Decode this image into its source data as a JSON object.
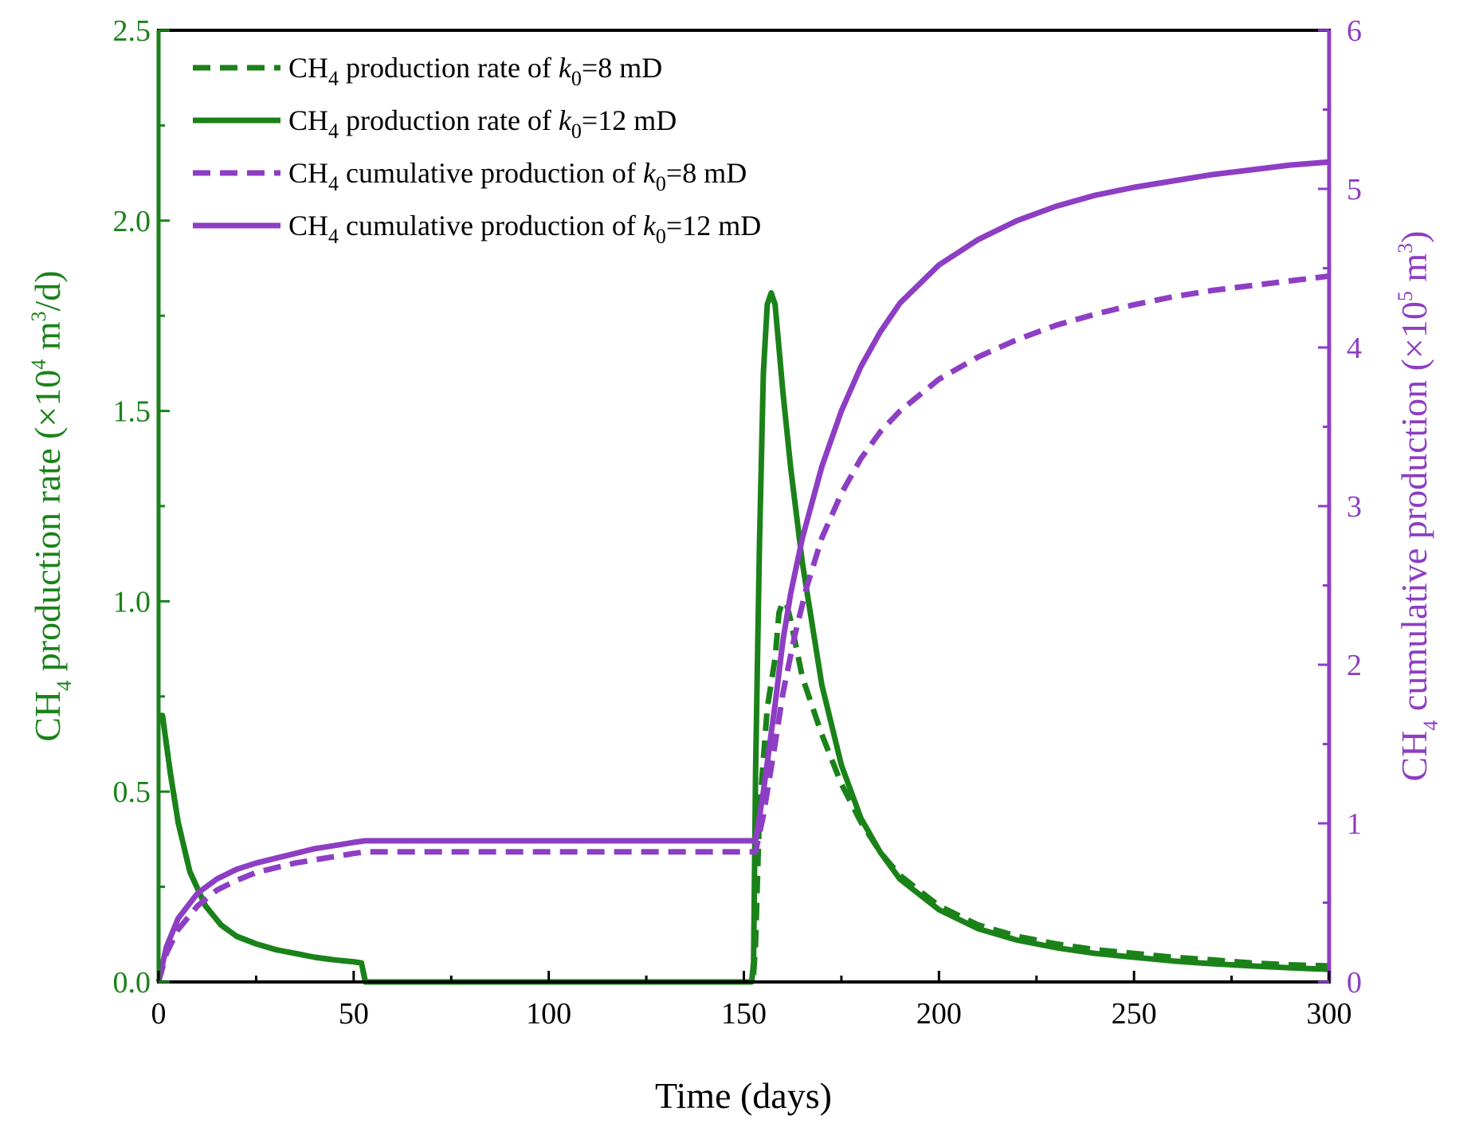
{
  "colors": {
    "rate": "#1a8219",
    "cumulative": "#8d3ec4",
    "frame": "#000000"
  },
  "chart_data": {
    "type": "line",
    "title": "",
    "xlabel": "Time (days)",
    "x_range": [
      0,
      300
    ],
    "x_ticks": [
      0,
      50,
      100,
      150,
      200,
      250,
      300
    ],
    "x_tick_labels": [
      "0",
      "50",
      "100",
      "150",
      "200",
      "250",
      "300"
    ],
    "y_left": {
      "label_main": "CH",
      "label_sub": "4",
      "label_mid": " production rate (×10",
      "label_sup": "4",
      "label_mid2": " m",
      "label_sup2": "3",
      "label_end": "/d)",
      "range": [
        0,
        2.5
      ],
      "ticks": [
        0.0,
        0.5,
        1.0,
        1.5,
        2.0,
        2.5
      ],
      "tick_labels": [
        "0.0",
        "0.5",
        "1.0",
        "1.5",
        "2.0",
        "2.5"
      ]
    },
    "y_right": {
      "label_main": "CH",
      "label_sub": "4",
      "label_mid": " cumulative production (×10",
      "label_sup": "5",
      "label_mid2": " m",
      "label_sup2": "3",
      "label_end": ")",
      "range": [
        0,
        6
      ],
      "ticks": [
        0,
        1,
        2,
        3,
        4,
        5,
        6
      ],
      "tick_labels": [
        "0",
        "1",
        "2",
        "3",
        "4",
        "5",
        "6"
      ]
    },
    "series": [
      {
        "name": "CH4 production rate of k0=8 mD",
        "legend": {
          "a": "CH",
          "b": "4",
          "c": " production rate of ",
          "d": "k",
          "e": "0",
          "f": "=8 mD"
        },
        "axis": "left",
        "style": "dashed",
        "color_key": "rate",
        "x": [
          0,
          1,
          3,
          5,
          8,
          12,
          16,
          20,
          25,
          30,
          35,
          40,
          45,
          50,
          52,
          53,
          54,
          60,
          80,
          100,
          120,
          140,
          152,
          152.5,
          153,
          154,
          156,
          158,
          159,
          160,
          161,
          162,
          163,
          165,
          170,
          175,
          180,
          185,
          190,
          200,
          210,
          220,
          230,
          240,
          250,
          260,
          270,
          280,
          290,
          300
        ],
        "y": [
          0.7,
          0.7,
          0.55,
          0.42,
          0.29,
          0.2,
          0.15,
          0.12,
          0.1,
          0.085,
          0.075,
          0.065,
          0.058,
          0.053,
          0.05,
          0.0,
          0.0,
          0.0,
          0.0,
          0.0,
          0.0,
          0.0,
          0.0,
          0.02,
          0.1,
          0.45,
          0.72,
          0.85,
          0.97,
          1.0,
          0.99,
          0.95,
          0.9,
          0.8,
          0.65,
          0.52,
          0.42,
          0.34,
          0.28,
          0.2,
          0.15,
          0.12,
          0.1,
          0.085,
          0.075,
          0.065,
          0.058,
          0.05,
          0.045,
          0.042
        ]
      },
      {
        "name": "CH4 production rate of k0=12 mD",
        "legend": {
          "a": "CH",
          "b": "4",
          "c": " production rate of ",
          "d": "k",
          "e": "0",
          "f": "=12 mD"
        },
        "axis": "left",
        "style": "solid",
        "color_key": "rate",
        "x": [
          0,
          1,
          3,
          5,
          8,
          12,
          16,
          20,
          25,
          30,
          35,
          40,
          45,
          50,
          52,
          53,
          54,
          60,
          80,
          100,
          120,
          140,
          152,
          152.5,
          153,
          154,
          155,
          156,
          157,
          158,
          160,
          162,
          165,
          170,
          175,
          180,
          185,
          190,
          200,
          210,
          220,
          230,
          240,
          250,
          260,
          270,
          280,
          290,
          300
        ],
        "y": [
          0.7,
          0.7,
          0.55,
          0.42,
          0.29,
          0.2,
          0.15,
          0.12,
          0.1,
          0.085,
          0.075,
          0.065,
          0.058,
          0.053,
          0.05,
          0.0,
          0.0,
          0.0,
          0.0,
          0.0,
          0.0,
          0.0,
          0.0,
          0.05,
          0.55,
          1.15,
          1.6,
          1.78,
          1.81,
          1.78,
          1.55,
          1.35,
          1.1,
          0.78,
          0.57,
          0.43,
          0.34,
          0.27,
          0.19,
          0.14,
          0.11,
          0.09,
          0.075,
          0.065,
          0.055,
          0.048,
          0.042,
          0.037,
          0.033
        ]
      },
      {
        "name": "CH4 cumulative production of k0=8 mD",
        "legend": {
          "a": "CH",
          "b": "4",
          "c": " cumulative production of ",
          "d": "k",
          "e": "0",
          "f": "=8 mD"
        },
        "axis": "right",
        "style": "dashed",
        "color_key": "cumulative",
        "x": [
          0,
          2,
          5,
          10,
          15,
          20,
          25,
          30,
          35,
          40,
          45,
          50,
          53,
          60,
          80,
          100,
          120,
          140,
          153,
          155,
          158,
          160,
          163,
          166,
          170,
          175,
          180,
          185,
          190,
          200,
          210,
          220,
          230,
          240,
          250,
          260,
          270,
          280,
          290,
          300
        ],
        "y": [
          0.0,
          0.18,
          0.33,
          0.48,
          0.58,
          0.64,
          0.69,
          0.72,
          0.75,
          0.77,
          0.79,
          0.81,
          0.82,
          0.82,
          0.82,
          0.82,
          0.82,
          0.82,
          0.82,
          1.05,
          1.5,
          1.82,
          2.18,
          2.48,
          2.8,
          3.08,
          3.3,
          3.47,
          3.6,
          3.8,
          3.94,
          4.05,
          4.14,
          4.21,
          4.27,
          4.32,
          4.36,
          4.39,
          4.42,
          4.45
        ]
      },
      {
        "name": "CH4 cumulative production of k0=12 mD",
        "legend": {
          "a": "CH",
          "b": "4",
          "c": " cumulative production of ",
          "d": "k",
          "e": "0",
          "f": "=12 mD"
        },
        "axis": "right",
        "style": "solid",
        "color_key": "cumulative",
        "x": [
          0,
          2,
          5,
          10,
          15,
          20,
          25,
          30,
          35,
          40,
          45,
          50,
          53,
          60,
          80,
          100,
          120,
          140,
          153,
          155,
          158,
          160,
          162,
          165,
          170,
          175,
          180,
          185,
          190,
          200,
          210,
          220,
          230,
          240,
          250,
          260,
          270,
          280,
          290,
          300
        ],
        "y": [
          0.0,
          0.22,
          0.4,
          0.56,
          0.65,
          0.71,
          0.75,
          0.78,
          0.81,
          0.84,
          0.86,
          0.88,
          0.89,
          0.89,
          0.89,
          0.89,
          0.89,
          0.89,
          0.89,
          1.2,
          1.75,
          2.15,
          2.45,
          2.8,
          3.25,
          3.6,
          3.88,
          4.1,
          4.28,
          4.52,
          4.68,
          4.8,
          4.89,
          4.96,
          5.01,
          5.05,
          5.09,
          5.12,
          5.15,
          5.17
        ]
      }
    ]
  }
}
